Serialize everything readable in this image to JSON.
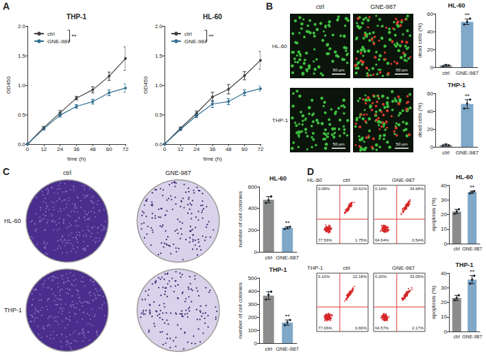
{
  "chart_data": [
    {
      "panel": "A",
      "type": "line",
      "title": "THP-1",
      "x_label": "time (h)",
      "y_label": "OD450",
      "x": [
        0,
        12,
        24,
        36,
        48,
        60,
        72
      ],
      "xlim": [
        0,
        72
      ],
      "xticks": [
        0,
        12,
        24,
        36,
        48,
        60,
        72
      ],
      "ylim": [
        0,
        2
      ],
      "yticks": [
        {
          "value": 0,
          "label": "0.0"
        },
        {
          "value": 0.5,
          "label": "0.5"
        },
        {
          "value": 1,
          "label": "1.0"
        },
        {
          "value": 1.5,
          "label": "1.5"
        },
        {
          "value": 2,
          "label": "2.0"
        }
      ],
      "legend": "top-left",
      "annotations": [
        {
          "text": "**"
        }
      ],
      "series": [
        {
          "name": "ctrl",
          "color": "#404040",
          "marker": "circle",
          "values": [
            0,
            0.28,
            0.53,
            0.78,
            0.92,
            1.15,
            1.45
          ],
          "errors": [
            0,
            0.02,
            0.04,
            0.03,
            0.05,
            0.07,
            0.2
          ]
        },
        {
          "name": "GNE-987",
          "color": "#2f6f8f",
          "marker": "circle",
          "values": [
            0,
            0.26,
            0.49,
            0.64,
            0.72,
            0.87,
            0.95
          ],
          "errors": [
            0,
            0.02,
            0.03,
            0.03,
            0.04,
            0.05,
            0.07
          ]
        }
      ]
    },
    {
      "panel": "A",
      "type": "line",
      "title": "HL-60",
      "x_label": "time (h)",
      "y_label": "OD450",
      "x": [
        0,
        12,
        24,
        36,
        48,
        60,
        72
      ],
      "xlim": [
        0,
        72
      ],
      "xticks": [
        0,
        12,
        24,
        36,
        48,
        60,
        72
      ],
      "ylim": [
        0,
        2
      ],
      "yticks": [
        {
          "value": 0,
          "label": "0.0"
        },
        {
          "value": 0.5,
          "label": "0.5"
        },
        {
          "value": 1,
          "label": "1.0"
        },
        {
          "value": 1.5,
          "label": "1.5"
        },
        {
          "value": 2,
          "label": "2.0"
        }
      ],
      "legend": "top-left",
      "annotations": [
        {
          "text": "**"
        }
      ],
      "series": [
        {
          "name": "ctrl",
          "color": "#404040",
          "marker": "circle",
          "values": [
            0,
            0.27,
            0.52,
            0.8,
            0.93,
            1.16,
            1.42
          ],
          "errors": [
            0,
            0.02,
            0.04,
            0.08,
            0.08,
            0.07,
            0.15
          ]
        },
        {
          "name": "GNE-987",
          "color": "#2f6f8f",
          "marker": "circle",
          "values": [
            0,
            0.25,
            0.48,
            0.68,
            0.72,
            0.87,
            0.94
          ],
          "errors": [
            0,
            0.02,
            0.03,
            0.06,
            0.05,
            0.05,
            0.04
          ]
        }
      ]
    },
    {
      "panel": "B",
      "type": "bar",
      "title": "HL-60",
      "y_label": "dead cells (%)",
      "categories": [
        "ctrl",
        "GNE-987"
      ],
      "colors": [
        "#8c8c8c",
        "#7fa8c9"
      ],
      "values": [
        2,
        51
      ],
      "errors": [
        0.8,
        3
      ],
      "points": [
        [
          1.2,
          2.5,
          2.2
        ],
        [
          48,
          51,
          54.5
        ]
      ],
      "ylim": [
        0,
        60
      ],
      "yticks": [
        0,
        20,
        40,
        60
      ],
      "annotations": [
        {
          "text": "**",
          "category": "GNE-987"
        }
      ]
    },
    {
      "panel": "B",
      "type": "bar",
      "title": "THP-1",
      "y_label": "dead cells (%)",
      "categories": [
        "ctrl",
        "GNE-987"
      ],
      "colors": [
        "#8c8c8c",
        "#7fa8c9"
      ],
      "values": [
        2,
        48
      ],
      "errors": [
        1,
        5
      ],
      "points": [
        [
          1.5,
          2.8,
          1.8
        ],
        [
          43,
          48.5,
          53
        ]
      ],
      "ylim": [
        0,
        60
      ],
      "yticks": [
        0,
        20,
        40,
        60
      ],
      "annotations": [
        {
          "text": "**",
          "category": "GNE-987"
        }
      ]
    },
    {
      "panel": "C",
      "type": "bar",
      "title": "HL-60",
      "y_label": "number of cell colonies",
      "categories": [
        "ctrl",
        "GNE-987"
      ],
      "colors": [
        "#8c8c8c",
        "#7fa8c9"
      ],
      "values": [
        480,
        222
      ],
      "errors": [
        28,
        10
      ],
      "points": [
        [
          450,
          475,
          510
        ],
        [
          212,
          225,
          230
        ]
      ],
      "ylim": [
        0,
        600
      ],
      "yticks": [
        0,
        200,
        400,
        600
      ],
      "annotations": [
        {
          "text": "**",
          "category": "GNE-987"
        }
      ]
    },
    {
      "panel": "C",
      "type": "bar",
      "title": "THP-1",
      "y_label": "number of cell colonies",
      "categories": [
        "ctrl",
        "GNE-987"
      ],
      "colors": [
        "#8c8c8c",
        "#7fa8c9"
      ],
      "values": [
        365,
        158
      ],
      "errors": [
        30,
        20
      ],
      "points": [
        [
          335,
          370,
          395
        ],
        [
          138,
          160,
          178
        ]
      ],
      "ylim": [
        0,
        500
      ],
      "yticks": [
        0,
        100,
        200,
        300,
        400,
        500
      ],
      "annotations": [
        {
          "text": "**",
          "category": "GNE-987"
        }
      ]
    },
    {
      "panel": "D",
      "type": "bar",
      "title": "HL-60",
      "y_label": "apoptosis (%)",
      "categories": [
        "ctrl",
        "GNE-987"
      ],
      "colors": [
        "#8c8c8c",
        "#7fa8c9"
      ],
      "values": [
        22,
        35.3
      ],
      "errors": [
        1.5,
        0.8
      ],
      "points": [
        [
          20.5,
          22,
          23.5
        ],
        [
          34.5,
          35.3,
          36
        ]
      ],
      "ylim": [
        0,
        40
      ],
      "yticks": [
        0,
        10,
        20,
        30,
        40
      ],
      "annotations": [
        {
          "text": "**",
          "category": "GNE-987"
        }
      ]
    },
    {
      "panel": "D",
      "type": "bar",
      "title": "THP-1",
      "y_label": "apoptosis (%)",
      "categories": [
        "ctrl",
        "GNE-987"
      ],
      "colors": [
        "#8c8c8c",
        "#7fa8c9"
      ],
      "values": [
        23,
        35.5
      ],
      "errors": [
        1.8,
        2.8
      ],
      "points": [
        [
          21.5,
          23,
          24.8
        ],
        [
          32.8,
          35.5,
          38.2
        ]
      ],
      "ylim": [
        0,
        40
      ],
      "yticks": [
        0,
        10,
        20,
        30,
        40
      ],
      "annotations": [
        {
          "text": "**",
          "category": "GNE-987"
        }
      ]
    }
  ],
  "figures": [
    {
      "panel": "B",
      "type": "fluorescence",
      "columns": [
        "ctrl",
        "GNE-987"
      ],
      "rows": [
        "HL-60",
        "THP-1"
      ],
      "scale_bar": "50 μm"
    },
    {
      "panel": "C",
      "type": "colony",
      "columns": [
        "ctrl",
        "GNE-987"
      ],
      "rows": [
        "HL-60",
        "THP-1"
      ]
    },
    {
      "panel": "D",
      "type": "flow",
      "columns": [
        "ctrl",
        "GNE-987"
      ],
      "rows": [
        "HL-60",
        "THP-1"
      ],
      "quadrants": [
        [
          [
            "0.08%",
            "20.61%",
            "77.56%",
            "1.75%"
          ],
          [
            "0.14%",
            "34.68%",
            "64.64%",
            "0.54%"
          ]
        ],
        [
          [
            "0.10%",
            "22.18%",
            "77.06%",
            "0.66%"
          ],
          [
            "0.20%",
            "33.05%",
            "64.57%",
            "2.17%"
          ]
        ]
      ]
    }
  ]
}
